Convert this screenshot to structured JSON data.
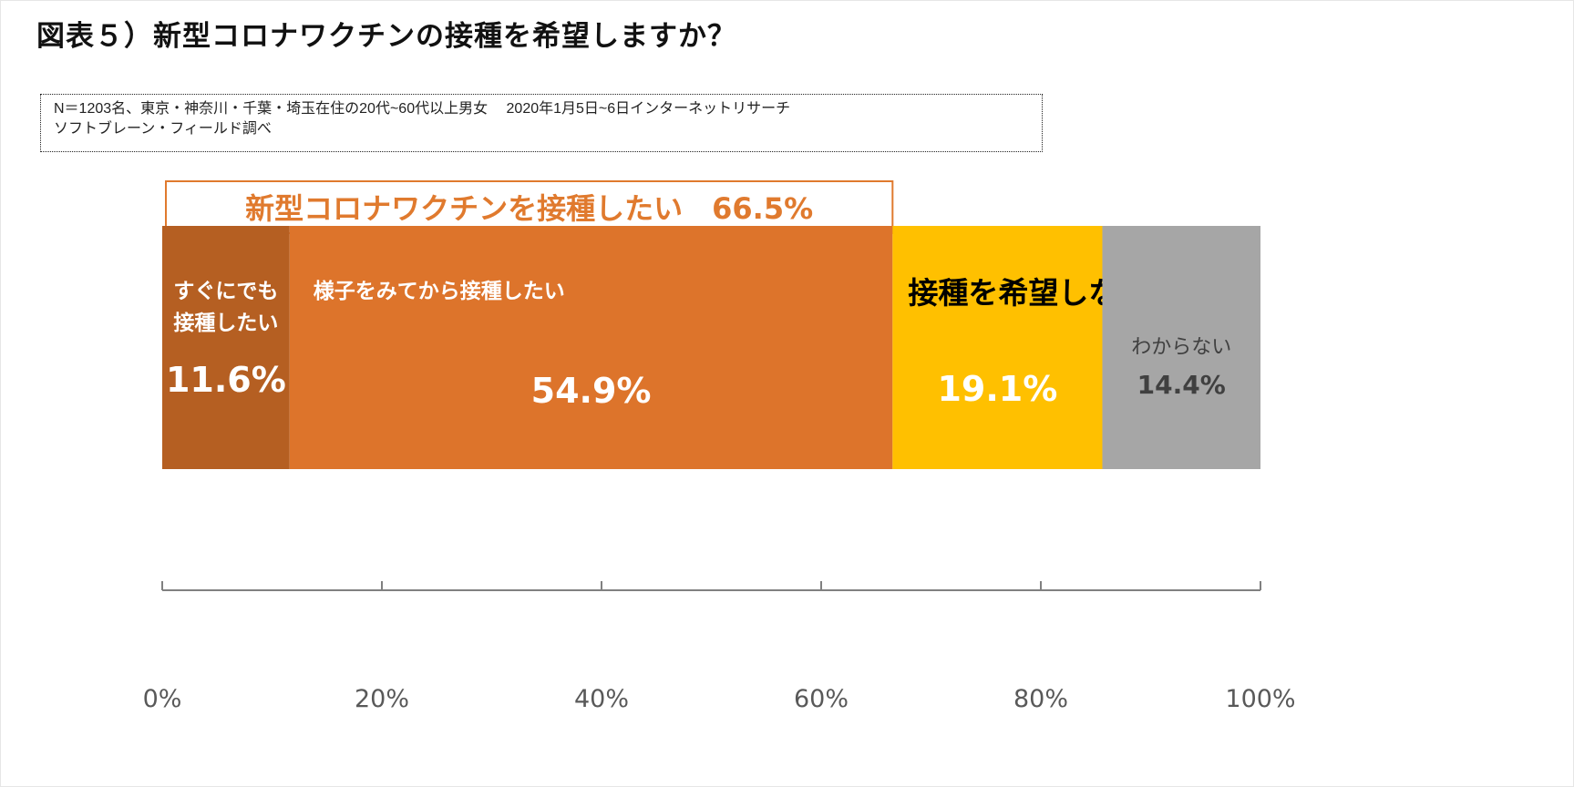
{
  "title": "図表５）新型コロナワクチンの接種を希望しますか？",
  "note": {
    "line1": "N＝1203名、東京・神奈川・千葉・埼玉在住の20代~60代以上男女　 2020年1月5日~6日インターネットリサーチ",
    "line2": "ソフトブレーン・フィールド調べ"
  },
  "chart_data": {
    "type": "bar",
    "orientation": "horizontal-stacked-100",
    "title": "新型コロナワクチンの接種を希望しますか？",
    "series": [
      {
        "name": "すぐにでも接種したい",
        "label_lines": [
          "すぐにでも",
          "接種したい"
        ],
        "value": 11.6,
        "value_label": "11.6%",
        "color": "#b55f22",
        "label_color": "#ffffff"
      },
      {
        "name": "様子をみてから接種したい",
        "label_lines": [
          "様子をみてから接種したい"
        ],
        "value": 54.9,
        "value_label": "54.9%",
        "color": "#dd742b",
        "label_color": "#ffffff"
      },
      {
        "name": "接種を希望しない",
        "label_lines": [
          "接種を希望しない"
        ],
        "value": 19.1,
        "value_label": "19.1%",
        "color": "#ffc000",
        "label_color": "#ffffff"
      },
      {
        "name": "わからない",
        "label_lines": [
          "わからない"
        ],
        "value": 14.4,
        "value_label": "14.4%",
        "color": "#a6a6a6",
        "label_color": "#404040"
      }
    ],
    "annotation": {
      "text": "新型コロナワクチンを接種したい　66.5%",
      "spans_value": 66.5
    },
    "xlim": [
      0,
      100
    ],
    "xticks": [
      "0%",
      "20%",
      "40%",
      "60%",
      "80%",
      "100%"
    ],
    "grid": false,
    "legend": "none"
  }
}
